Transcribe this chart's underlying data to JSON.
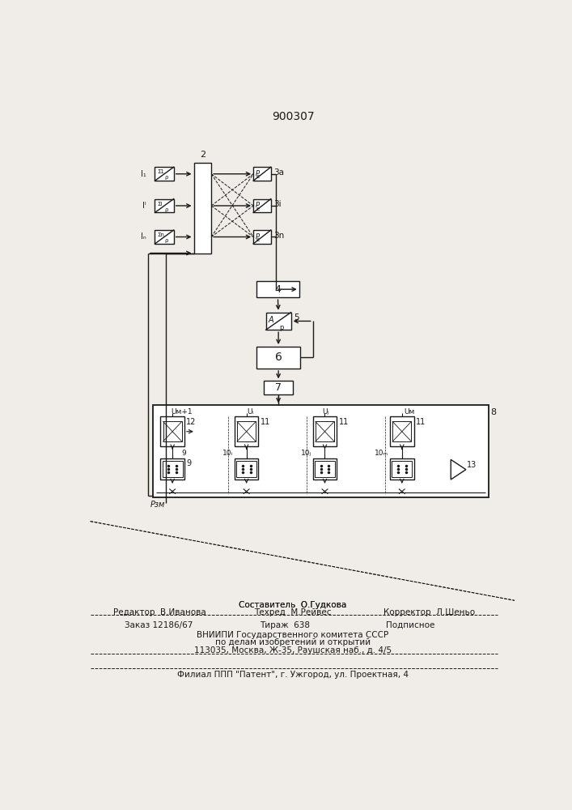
{
  "title": "900307",
  "bg_color": "#f0ede8",
  "line_color": "#1a1a1a",
  "footer_items": [
    [
      353,
      805,
      "Составитель  О.Гудкова",
      "center",
      7.2
    ],
    [
      130,
      820,
      "Редактор  В.Иванова",
      "center",
      7.2
    ],
    [
      353,
      820,
      "Техред  М.Рейвес",
      "center",
      7.2
    ],
    [
      565,
      820,
      "Корректор  Л.Шеньо",
      "center",
      7.2
    ],
    [
      90,
      840,
      "Заказ 12186/67",
      "left",
      7.2
    ],
    [
      330,
      840,
      "Тираж  638",
      "center",
      7.2
    ],
    [
      535,
      840,
      "Подписное",
      "center",
      7.2
    ],
    [
      353,
      854,
      "ВНИИПИ Государственного комитета СССР",
      "center",
      7.2
    ],
    [
      353,
      866,
      "по делам изобретений и открытий",
      "center",
      7.2
    ],
    [
      353,
      878,
      "113035, Москва, Ж-35, Раушская наб., д. 4/5",
      "center",
      7.2
    ],
    [
      353,
      908,
      "Филиал ППП \"Патент\", г. Ужгород, ул. Проектная, 4",
      "center",
      7.2
    ]
  ],
  "sep_lines": [
    [
      30,
      680,
      830,
      832
    ],
    [
      30,
      680,
      892,
      892
    ],
    [
      30,
      680,
      920,
      920
    ]
  ]
}
